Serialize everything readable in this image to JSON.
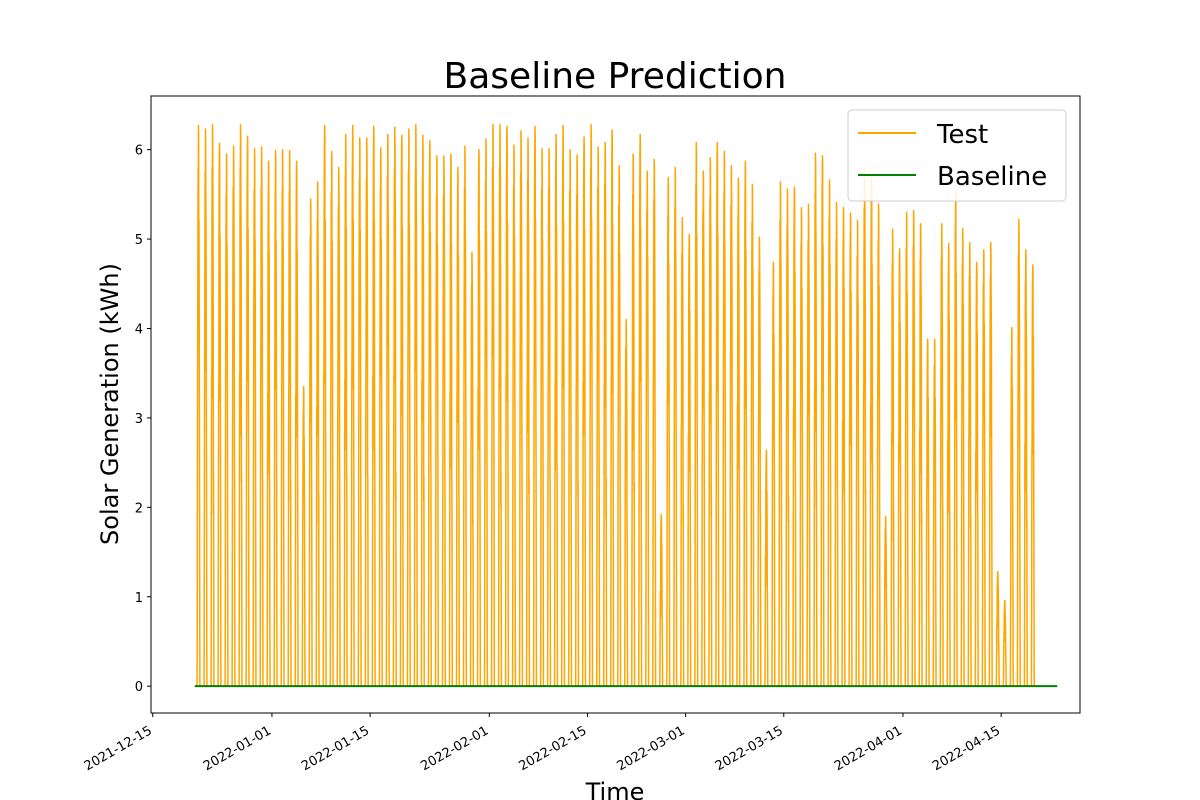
{
  "chart_data": {
    "type": "line",
    "title": "Baseline Prediction",
    "xlabel": "Time",
    "ylabel": "Solar Generation (kWh)",
    "ylim": [
      -0.3,
      6.6
    ],
    "xlim": [
      "2021-12-14T18:00",
      "2022-04-26T06:00"
    ],
    "grid": false,
    "legend_position": "top-right",
    "x_ticks": [
      "2021-12-15",
      "2022-01-01",
      "2022-01-15",
      "2022-02-01",
      "2022-02-15",
      "2022-03-01",
      "2022-03-15",
      "2022-04-01",
      "2022-04-15"
    ],
    "y_ticks": [
      "0",
      "1",
      "2",
      "3",
      "4",
      "5",
      "6"
    ],
    "series": [
      {
        "name": "Test",
        "color": "#ffa500",
        "kind": "daily_peaks",
        "start_date": "2021-12-21",
        "daily_peak_kwh": [
          6.27,
          6.23,
          6.28,
          6.07,
          5.95,
          6.04,
          6.28,
          6.15,
          6.01,
          6.03,
          5.87,
          5.99,
          6.0,
          5.99,
          5.87,
          3.35,
          5.45,
          5.64,
          6.27,
          5.98,
          5.8,
          6.17,
          6.27,
          6.13,
          6.13,
          6.26,
          6.02,
          6.17,
          6.25,
          6.16,
          6.23,
          6.28,
          6.16,
          6.1,
          5.93,
          5.93,
          5.95,
          5.8,
          6.04,
          4.85,
          6.0,
          6.12,
          6.28,
          6.28,
          6.26,
          6.05,
          6.21,
          6.13,
          6.26,
          6.01,
          6.01,
          6.17,
          6.27,
          6.0,
          5.94,
          6.14,
          6.28,
          6.03,
          6.08,
          6.22,
          5.82,
          4.1,
          5.95,
          6.17,
          5.76,
          5.89,
          1.92,
          5.69,
          5.8,
          5.24,
          5.05,
          6.08,
          5.76,
          5.91,
          6.08,
          5.98,
          5.82,
          5.68,
          5.87,
          5.61,
          5.02,
          2.64,
          4.74,
          5.64,
          5.56,
          5.58,
          5.35,
          5.39,
          5.96,
          5.93,
          5.66,
          5.41,
          5.35,
          5.29,
          5.21,
          5.79,
          5.68,
          5.39,
          1.9,
          5.11,
          4.89,
          5.3,
          5.32,
          5.17,
          3.88,
          3.88,
          5.17,
          4.95,
          5.55,
          5.12,
          4.96,
          4.74,
          4.88,
          4.96,
          1.28,
          0.96,
          4.01,
          5.22,
          4.88,
          4.71
        ]
      },
      {
        "name": "Baseline",
        "color": "#008000",
        "x": [
          "2021-12-21",
          "2022-04-23"
        ],
        "values": [
          0,
          0
        ]
      }
    ]
  }
}
